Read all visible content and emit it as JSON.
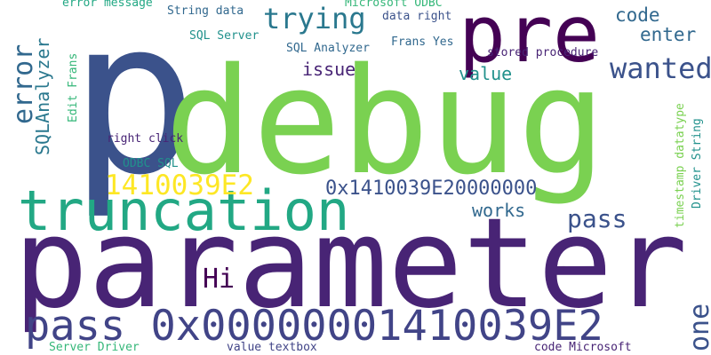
{
  "words": [
    {
      "text": "p",
      "color": "#3b528b"
    },
    {
      "text": "debug",
      "color": "#7ad151"
    },
    {
      "text": "parameter",
      "color": "#482475"
    },
    {
      "text": "truncation",
      "color": "#22a884"
    },
    {
      "text": "pre",
      "color": "#440154"
    },
    {
      "text": "pass 0x00000001410039E2",
      "color": "#414487"
    },
    {
      "text": "trying",
      "color": "#2a788e"
    },
    {
      "text": "wanted",
      "color": "#3b528b"
    },
    {
      "text": "error",
      "color": "#31688e"
    },
    {
      "text": "1410039E2",
      "color": "#fde725"
    },
    {
      "text": "0x1410039E20000000",
      "color": "#3b528b"
    },
    {
      "text": "pass",
      "color": "#3b528b"
    },
    {
      "text": "Hi",
      "color": "#440154"
    },
    {
      "text": "one",
      "color": "#3b528b"
    },
    {
      "text": "code",
      "color": "#31688e"
    },
    {
      "text": "enter",
      "color": "#31688e"
    },
    {
      "text": "value",
      "color": "#21918c"
    },
    {
      "text": "issue",
      "color": "#482475"
    },
    {
      "text": "works",
      "color": "#31688e"
    },
    {
      "text": "SQLAnalyzer",
      "color": "#2a788e"
    },
    {
      "text": "error message",
      "color": "#22a884"
    },
    {
      "text": "String data",
      "color": "#31688e"
    },
    {
      "text": "Microsoft ODBC",
      "color": "#35b779"
    },
    {
      "text": "data right",
      "color": "#3b528b"
    },
    {
      "text": "SQL Server",
      "color": "#21918c"
    },
    {
      "text": "SQL Analyzer",
      "color": "#31688e"
    },
    {
      "text": "Frans Yes",
      "color": "#31688e"
    },
    {
      "text": "stored procedure",
      "color": "#482475"
    },
    {
      "text": "Edit Frans",
      "color": "#35b779"
    },
    {
      "text": "right click",
      "color": "#482475"
    },
    {
      "text": "ODBC SQL",
      "color": "#21918c"
    },
    {
      "text": "timestamp datatype",
      "color": "#7ad151"
    },
    {
      "text": "Driver String",
      "color": "#21918c"
    },
    {
      "text": "Server Driver",
      "color": "#35b779"
    },
    {
      "text": "value textbox",
      "color": "#414487"
    },
    {
      "text": "code Microsoft",
      "color": "#482475"
    }
  ]
}
